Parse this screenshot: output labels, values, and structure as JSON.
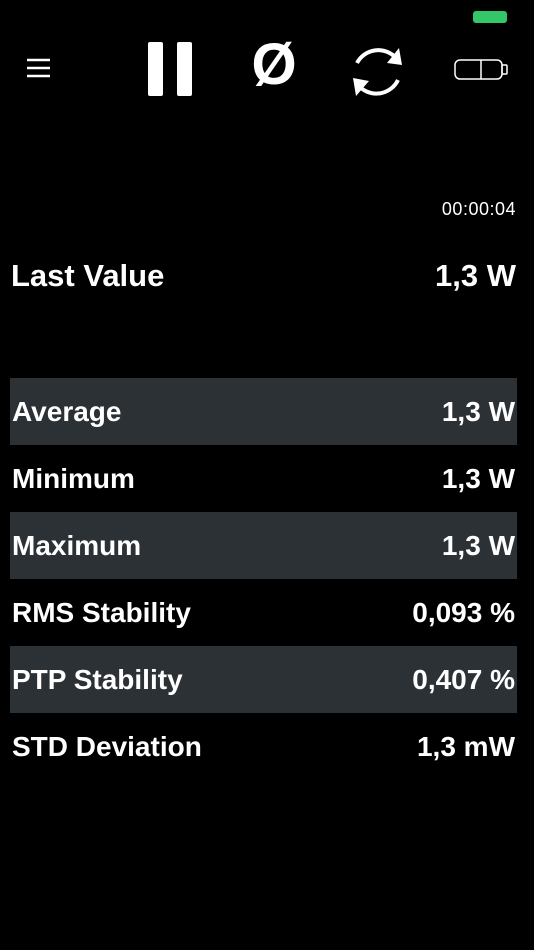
{
  "toolbar": {
    "zero_button": "Ø"
  },
  "timer": "00:00:04",
  "last_value": {
    "label": "Last Value",
    "value": "1,3 W"
  },
  "stats": [
    {
      "label": "Average",
      "value": "1,3 W"
    },
    {
      "label": "Minimum",
      "value": "1,3 W"
    },
    {
      "label": "Maximum",
      "value": "1,3 W"
    },
    {
      "label": "RMS Stability",
      "value": "0,093 %"
    },
    {
      "label": "PTP Stability",
      "value": "0,407 %"
    },
    {
      "label": "STD Deviation",
      "value": "1,3 mW"
    }
  ]
}
